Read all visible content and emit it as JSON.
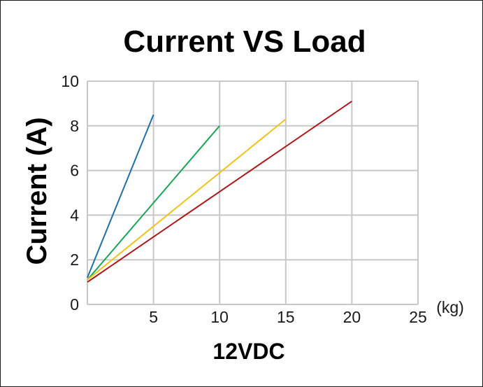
{
  "chart_data": {
    "type": "line",
    "title": "Current VS Load",
    "ylabel": "Current (A)",
    "xlabel": "12VDC",
    "x_unit": "(kg)",
    "xlim": [
      0,
      25
    ],
    "ylim": [
      0,
      10
    ],
    "x_ticks": [
      5,
      10,
      15,
      20,
      25
    ],
    "y_ticks": [
      0,
      2,
      4,
      6,
      8,
      10
    ],
    "grid": true,
    "series": [
      {
        "color": "#1f6fa8",
        "x": [
          0,
          5
        ],
        "y": [
          1.2,
          8.5
        ]
      },
      {
        "color": "#1aa65a",
        "x": [
          0,
          10
        ],
        "y": [
          1.1,
          8.0
        ]
      },
      {
        "color": "#f2c21a",
        "x": [
          0,
          15
        ],
        "y": [
          1.1,
          8.3
        ]
      },
      {
        "color": "#b01818",
        "x": [
          0,
          20
        ],
        "y": [
          1.0,
          9.1
        ]
      }
    ]
  }
}
